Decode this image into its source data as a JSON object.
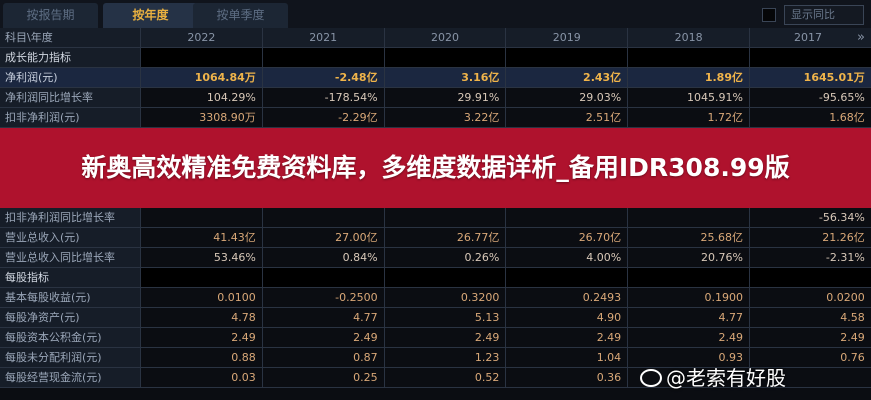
{
  "tabs": [
    "按报告期",
    "按年度",
    "按单季度"
  ],
  "active_tab": 1,
  "compare_label": "显示同比",
  "header": {
    "label": "科目\\年度",
    "years": [
      "2022",
      "2021",
      "2020",
      "2019",
      "2018",
      "2017"
    ],
    "more": "»"
  },
  "rows": [
    {
      "label": "成长能力指标",
      "type": "sec",
      "values": [
        "",
        "",
        "",
        "",
        "",
        ""
      ]
    },
    {
      "label": "净利润(元)",
      "type": "hl",
      "values": [
        "1064.84万",
        "-2.48亿",
        "3.16亿",
        "2.43亿",
        "1.89亿",
        "1645.01万"
      ]
    },
    {
      "label": "净利润同比增长率",
      "type": "pct",
      "values": [
        "104.29%",
        "-178.54%",
        "29.91%",
        "29.03%",
        "1045.91%",
        "-95.65%"
      ]
    },
    {
      "label": "扣非净利润(元)",
      "type": "",
      "values": [
        "3308.90万",
        "-2.29亿",
        "3.22亿",
        "2.51亿",
        "1.72亿",
        "1.68亿"
      ]
    },
    {
      "label": "扣非净利润同比增长率",
      "type": "pct",
      "values": [
        "",
        "",
        "",
        "",
        "",
        "-56.34%"
      ]
    },
    {
      "label": "营业总收入(元)",
      "type": "",
      "values": [
        "41.43亿",
        "27.00亿",
        "26.77亿",
        "26.70亿",
        "25.68亿",
        "21.26亿"
      ]
    },
    {
      "label": "营业总收入同比增长率",
      "type": "pct",
      "values": [
        "53.46%",
        "0.84%",
        "0.26%",
        "4.00%",
        "20.76%",
        "-2.31%"
      ]
    },
    {
      "label": "每股指标",
      "type": "sec",
      "values": [
        "",
        "",
        "",
        "",
        "",
        ""
      ]
    },
    {
      "label": "基本每股收益(元)",
      "type": "",
      "values": [
        "0.0100",
        "-0.2500",
        "0.3200",
        "0.2493",
        "0.1900",
        "0.0200"
      ]
    },
    {
      "label": "每股净资产(元)",
      "type": "",
      "values": [
        "4.78",
        "4.77",
        "5.13",
        "4.90",
        "4.77",
        "4.58"
      ]
    },
    {
      "label": "每股资本公积金(元)",
      "type": "",
      "values": [
        "2.49",
        "2.49",
        "2.49",
        "2.49",
        "2.49",
        "2.49"
      ]
    },
    {
      "label": "每股未分配利润(元)",
      "type": "",
      "values": [
        "0.88",
        "0.87",
        "1.23",
        "1.04",
        "0.93",
        "0.76"
      ]
    },
    {
      "label": "每股经营现金流(元)",
      "type": "",
      "values": [
        "0.03",
        "0.25",
        "0.52",
        "0.36",
        "",
        ""
      ]
    }
  ],
  "banner": "新奥高效精准免费资料库，多维度数据详析_备用IDR308.99版",
  "watermark": "@老索有好股",
  "colors": {
    "banner": "#be1230",
    "highlight": "#f0b44a",
    "value": "#d9a878"
  }
}
